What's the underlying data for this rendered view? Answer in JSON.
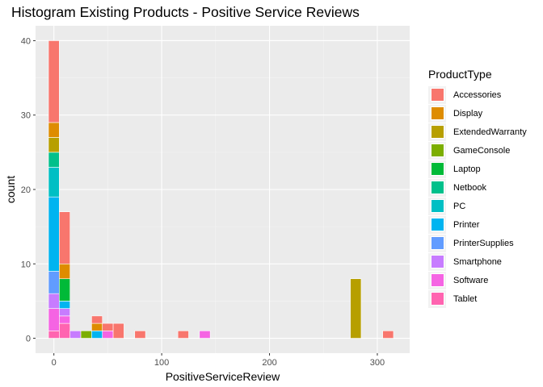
{
  "chart_data": {
    "type": "bar",
    "title": "Histogram Existing Products - Positive Service Reviews",
    "xlabel": "PositiveServiceReview",
    "ylabel": "count",
    "x_ticks": [
      0,
      100,
      200,
      300
    ],
    "y_ticks": [
      0,
      10,
      20,
      30,
      40
    ],
    "xlim": [
      -17,
      330
    ],
    "ylim": [
      -2,
      42
    ],
    "bin_width": 10,
    "legend_title": "ProductType",
    "legend_position": "right",
    "grid": true,
    "series": [
      {
        "name": "Accessories",
        "color": "#F8766D"
      },
      {
        "name": "Display",
        "color": "#DE8C00"
      },
      {
        "name": "ExtendedWarranty",
        "color": "#B79F00"
      },
      {
        "name": "GameConsole",
        "color": "#7CAE00"
      },
      {
        "name": "Laptop",
        "color": "#00BA38"
      },
      {
        "name": "Netbook",
        "color": "#00C08B"
      },
      {
        "name": "PC",
        "color": "#00BFC4"
      },
      {
        "name": "Printer",
        "color": "#00B4F0"
      },
      {
        "name": "PrinterSupplies",
        "color": "#619CFF"
      },
      {
        "name": "Smartphone",
        "color": "#C77CFF"
      },
      {
        "name": "Software",
        "color": "#F564E3"
      },
      {
        "name": "Tablet",
        "color": "#FF64B0"
      }
    ],
    "bins": [
      {
        "x": 0,
        "segments": [
          {
            "series": "Tablet",
            "count": 1
          },
          {
            "series": "Software",
            "count": 3
          },
          {
            "series": "Smartphone",
            "count": 2
          },
          {
            "series": "PrinterSupplies",
            "count": 3
          },
          {
            "series": "Printer",
            "count": 10
          },
          {
            "series": "PC",
            "count": 4
          },
          {
            "series": "Netbook",
            "count": 2
          },
          {
            "series": "ExtendedWarranty",
            "count": 2
          },
          {
            "series": "Display",
            "count": 2
          },
          {
            "series": "Accessories",
            "count": 11
          }
        ]
      },
      {
        "x": 10,
        "segments": [
          {
            "series": "Tablet",
            "count": 2
          },
          {
            "series": "Software",
            "count": 1
          },
          {
            "series": "Smartphone",
            "count": 1
          },
          {
            "series": "Printer",
            "count": 1
          },
          {
            "series": "Laptop",
            "count": 3
          },
          {
            "series": "Display",
            "count": 2
          },
          {
            "series": "Accessories",
            "count": 7
          }
        ]
      },
      {
        "x": 20,
        "segments": [
          {
            "series": "Smartphone",
            "count": 1
          }
        ]
      },
      {
        "x": 30,
        "segments": [
          {
            "series": "GameConsole",
            "count": 1
          }
        ]
      },
      {
        "x": 40,
        "segments": [
          {
            "series": "Printer",
            "count": 1
          },
          {
            "series": "Display",
            "count": 1
          },
          {
            "series": "Accessories",
            "count": 1
          }
        ]
      },
      {
        "x": 50,
        "segments": [
          {
            "series": "Software",
            "count": 1
          },
          {
            "series": "Accessories",
            "count": 1
          }
        ]
      },
      {
        "x": 60,
        "segments": [
          {
            "series": "Accessories",
            "count": 2
          }
        ]
      },
      {
        "x": 80,
        "segments": [
          {
            "series": "Accessories",
            "count": 1
          }
        ]
      },
      {
        "x": 120,
        "segments": [
          {
            "series": "Accessories",
            "count": 1
          }
        ]
      },
      {
        "x": 140,
        "segments": [
          {
            "series": "Software",
            "count": 1
          }
        ]
      },
      {
        "x": 280,
        "segments": [
          {
            "series": "ExtendedWarranty",
            "count": 8
          }
        ]
      },
      {
        "x": 310,
        "segments": [
          {
            "series": "Accessories",
            "count": 1
          }
        ]
      }
    ]
  }
}
